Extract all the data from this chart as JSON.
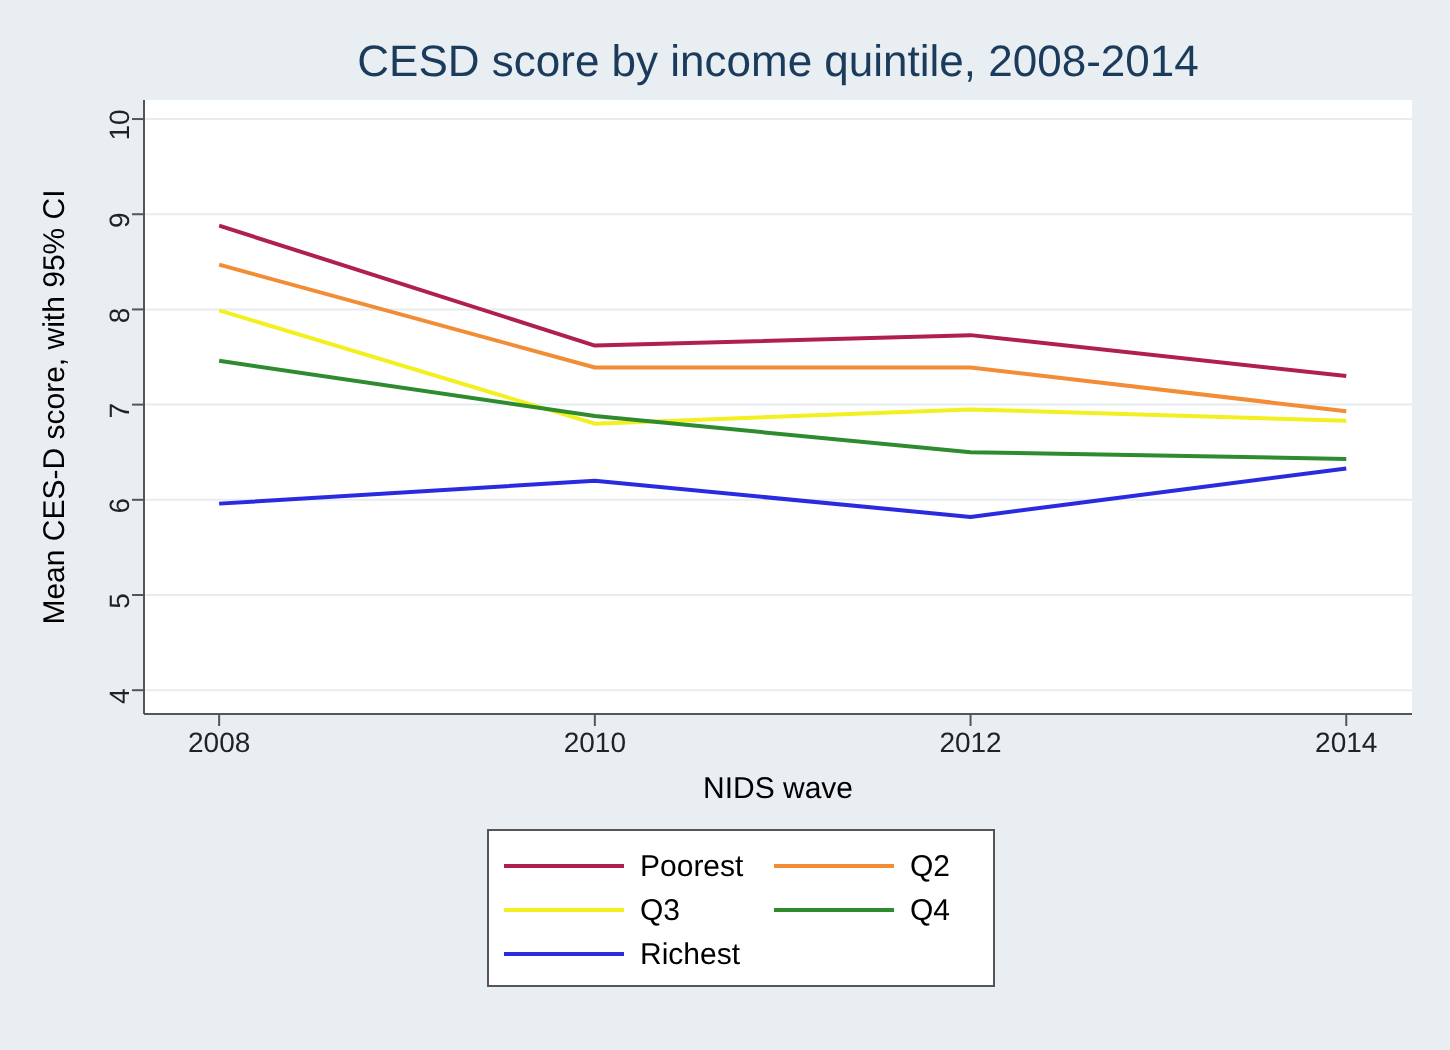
{
  "chart_data": {
    "type": "line",
    "title": "CESD score by income quintile, 2008-2014",
    "xlabel": "NIDS wave",
    "ylabel": "Mean CES-D score, with 95% CI",
    "x": [
      2008,
      2010,
      2012,
      2014
    ],
    "series": [
      {
        "name": "Poorest",
        "color": "#b0204f",
        "values": [
          8.88,
          7.62,
          7.73,
          7.3
        ]
      },
      {
        "name": "Q2",
        "color": "#f28c35",
        "values": [
          8.47,
          7.39,
          7.39,
          6.93
        ]
      },
      {
        "name": "Q3",
        "color": "#f2f020",
        "values": [
          7.99,
          6.8,
          6.95,
          6.83
        ]
      },
      {
        "name": "Q4",
        "color": "#2e8b2e",
        "values": [
          7.46,
          6.88,
          6.5,
          6.43
        ]
      },
      {
        "name": "Richest",
        "color": "#2a2ae0",
        "values": [
          5.96,
          6.2,
          5.82,
          6.33
        ]
      }
    ],
    "xlim": [
      2007.6,
      2014.35
    ],
    "xticks": [
      2008,
      2010,
      2012,
      2014
    ],
    "ylim": [
      3.75,
      10.2
    ],
    "yticks": [
      4,
      5,
      6,
      7,
      8,
      9,
      10
    ],
    "grid": "y",
    "legend": "bottom",
    "marker": "none",
    "line_style": "solid"
  }
}
